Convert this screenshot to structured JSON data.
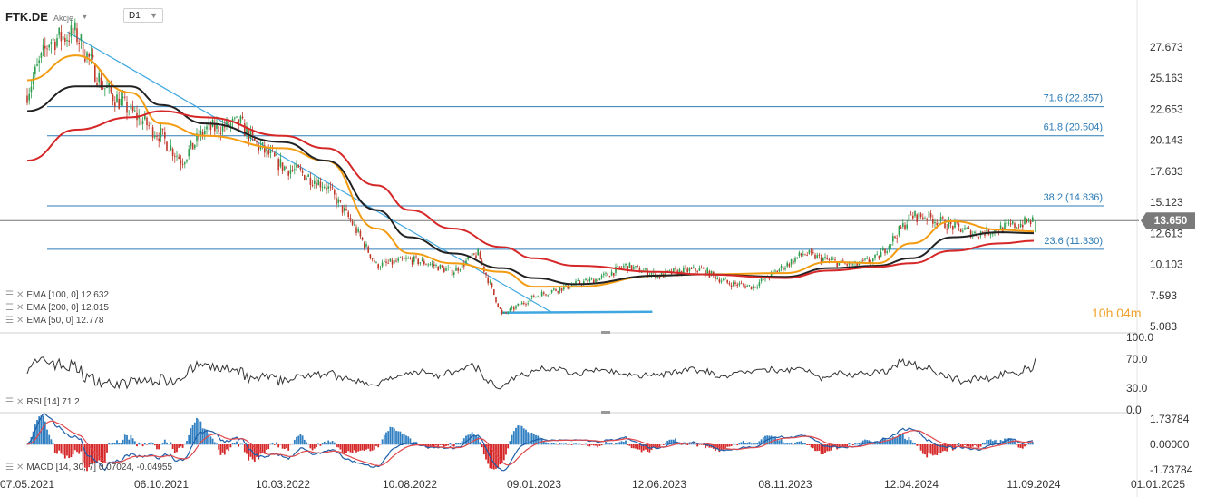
{
  "header": {
    "symbol": "FTK.DE",
    "symbol_type": "Akcje",
    "timeframe": "D1"
  },
  "timer": {
    "hours": "10",
    "h_unit": "h",
    "minutes": "04",
    "m_unit": "m"
  },
  "colors": {
    "ema50": "#f39c12",
    "ema100": "#222222",
    "ema200": "#d62728",
    "fib": "#2c7bb6",
    "trendline": "#3fa7e0",
    "price_label_bg": "#7a7a7a",
    "macd_pos": "#2f7fc1",
    "macd_neg": "#d62728",
    "macd_line": "#1f5fa8",
    "signal_line": "#e0484b"
  },
  "legends": {
    "ema100": "EMA [100, 0] 12.632",
    "ema200": "EMA [200, 0] 12.015",
    "ema50": "EMA [50, 0] 12.778",
    "rsi": "RSI [14] 71.2",
    "macd": "MACD [14, 30, 7] 0.07024, -0.04955"
  },
  "chart_data": [
    {
      "type": "candlestick",
      "title": "FTK.DE",
      "x_ticks": [
        "07.05.2021",
        "06.10.2021",
        "10.03.2022",
        "10.08.2022",
        "09.01.2023",
        "12.06.2023",
        "08.11.2023",
        "12.04.2024",
        "11.09.2024",
        "01.01.2025"
      ],
      "y_ticks": [
        "27.673",
        "25.163",
        "22.653",
        "20.143",
        "17.633",
        "15.123",
        "12.613",
        "10.103",
        "7.593",
        "5.083"
      ],
      "ylim": [
        5.083,
        29.0
      ],
      "last_price": "13.650",
      "price_path": [
        [
          "07.05.2021",
          24.0
        ],
        [
          "01.06.2021",
          28.2
        ],
        [
          "01.07.2021",
          28.8
        ],
        [
          "01.08.2021",
          24.5
        ],
        [
          "01.09.2021",
          22.5
        ],
        [
          "06.10.2021",
          20.5
        ],
        [
          "01.11.2021",
          18.5
        ],
        [
          "01.12.2021",
          21.0
        ],
        [
          "15.01.2022",
          21.5
        ],
        [
          "01.02.2022",
          20.0
        ],
        [
          "10.03.2022",
          18.0
        ],
        [
          "01.04.2022",
          17.5
        ],
        [
          "01.05.2022",
          16.5
        ],
        [
          "01.06.2022",
          13.5
        ],
        [
          "01.07.2022",
          10.0
        ],
        [
          "10.08.2022",
          10.5
        ],
        [
          "01.09.2022",
          10.2
        ],
        [
          "01.10.2022",
          9.5
        ],
        [
          "01.11.2022",
          11.0
        ],
        [
          "01.12.2022",
          6.0
        ],
        [
          "09.01.2023",
          7.5
        ],
        [
          "01.02.2023",
          8.0
        ],
        [
          "01.03.2023",
          8.5
        ],
        [
          "01.04.2023",
          9.0
        ],
        [
          "01.05.2023",
          10.0
        ],
        [
          "12.06.2023",
          9.2
        ],
        [
          "01.07.2023",
          9.5
        ],
        [
          "01.08.2023",
          9.7
        ],
        [
          "01.09.2023",
          8.6
        ],
        [
          "01.10.2023",
          8.3
        ],
        [
          "08.11.2023",
          10.0
        ],
        [
          "01.12.2023",
          11.0
        ],
        [
          "01.01.2024",
          10.4
        ],
        [
          "01.02.2024",
          10.0
        ],
        [
          "01.03.2024",
          10.6
        ],
        [
          "12.04.2024",
          14.0
        ],
        [
          "01.05.2024",
          14.0
        ],
        [
          "01.06.2024",
          13.2
        ],
        [
          "01.07.2024",
          12.6
        ],
        [
          "01.08.2024",
          13.0
        ],
        [
          "11.09.2024",
          13.65
        ]
      ],
      "series": [
        {
          "name": "EMA [50, 0] 12.778",
          "values": [
            [
              "07.05.2021",
              25.0
            ],
            [
              "01.07.2021",
              27.0
            ],
            [
              "01.09.2021",
              24.0
            ],
            [
              "06.10.2021",
              21.5
            ],
            [
              "01.12.2021",
              20.5
            ],
            [
              "10.03.2022",
              19.5
            ],
            [
              "01.05.2022",
              18.5
            ],
            [
              "01.07.2022",
              13.0
            ],
            [
              "10.08.2022",
              11.0
            ],
            [
              "01.10.2022",
              10.2
            ],
            [
              "01.12.2022",
              9.5
            ],
            [
              "09.01.2023",
              8.3
            ],
            [
              "01.03.2023",
              8.3
            ],
            [
              "12.06.2023",
              9.2
            ],
            [
              "01.08.2023",
              9.3
            ],
            [
              "08.11.2023",
              9.4
            ],
            [
              "01.01.2024",
              10.3
            ],
            [
              "01.03.2024",
              10.2
            ],
            [
              "12.04.2024",
              11.8
            ],
            [
              "01.06.2024",
              13.6
            ],
            [
              "01.08.2024",
              12.9
            ],
            [
              "11.09.2024",
              12.778
            ]
          ]
        },
        {
          "name": "EMA [100, 0] 12.632",
          "values": [
            [
              "07.05.2021",
              22.5
            ],
            [
              "01.07.2021",
              24.5
            ],
            [
              "01.09.2021",
              24.5
            ],
            [
              "06.10.2021",
              23.0
            ],
            [
              "01.12.2021",
              21.5
            ],
            [
              "10.03.2022",
              20.0
            ],
            [
              "01.05.2022",
              18.5
            ],
            [
              "01.07.2022",
              14.5
            ],
            [
              "10.08.2022",
              12.3
            ],
            [
              "01.10.2022",
              11.0
            ],
            [
              "01.12.2022",
              9.8
            ],
            [
              "09.01.2023",
              9.0
            ],
            [
              "01.03.2023",
              8.5
            ],
            [
              "12.06.2023",
              9.2
            ],
            [
              "01.08.2023",
              9.3
            ],
            [
              "08.11.2023",
              9.1
            ],
            [
              "01.01.2024",
              9.8
            ],
            [
              "01.03.2024",
              10.0
            ],
            [
              "12.04.2024",
              10.6
            ],
            [
              "01.06.2024",
              12.3
            ],
            [
              "01.08.2024",
              12.7
            ],
            [
              "11.09.2024",
              12.632
            ]
          ]
        },
        {
          "name": "EMA [200, 0] 12.015",
          "values": [
            [
              "07.05.2021",
              18.5
            ],
            [
              "01.07.2021",
              21.0
            ],
            [
              "01.09.2021",
              22.0
            ],
            [
              "06.10.2021",
              22.5
            ],
            [
              "01.12.2021",
              22.0
            ],
            [
              "10.03.2022",
              20.5
            ],
            [
              "01.05.2022",
              19.5
            ],
            [
              "01.07.2022",
              16.5
            ],
            [
              "10.08.2022",
              14.5
            ],
            [
              "01.10.2022",
              13.0
            ],
            [
              "01.12.2022",
              11.5
            ],
            [
              "09.01.2023",
              10.6
            ],
            [
              "01.03.2023",
              10.0
            ],
            [
              "12.06.2023",
              9.5
            ],
            [
              "01.08.2023",
              9.3
            ],
            [
              "08.11.2023",
              9.0
            ],
            [
              "01.01.2024",
              9.6
            ],
            [
              "01.03.2024",
              9.9
            ],
            [
              "12.04.2024",
              10.2
            ],
            [
              "01.06.2024",
              11.2
            ],
            [
              "01.08.2024",
              11.8
            ],
            [
              "11.09.2024",
              12.015
            ]
          ]
        }
      ],
      "fib_levels": [
        {
          "label": "71.6 (22.857)",
          "value": 22.857
        },
        {
          "label": "61.8 (20.504)",
          "value": 20.504
        },
        {
          "label": "38.2 (14.836)",
          "value": 14.836
        },
        {
          "label": "23.6 (11.330)",
          "value": 11.33
        }
      ],
      "trendline": {
        "from": [
          "01.06.2021",
          28.9
        ],
        "to": [
          "09.01.2023",
          6.2
        ]
      },
      "support_line": {
        "from": [
          "01.12.2022",
          6.2
        ],
        "to": [
          "01.05.2023",
          6.2
        ]
      }
    },
    {
      "type": "line",
      "title": "RSI [14] 71.2",
      "y_ticks": [
        "100.0",
        "70.0",
        "30.0",
        "0.0"
      ],
      "ylim": [
        0,
        100
      ],
      "last_value": 71.2
    },
    {
      "type": "bar",
      "title": "MACD [14, 30, 7] 0.07024, -0.04955",
      "y_ticks": [
        "1.73784",
        "0.00000",
        "-1.73784"
      ],
      "ylim": [
        -1.73784,
        1.73784
      ],
      "macd": 0.07024,
      "signal": -0.04955
    }
  ]
}
